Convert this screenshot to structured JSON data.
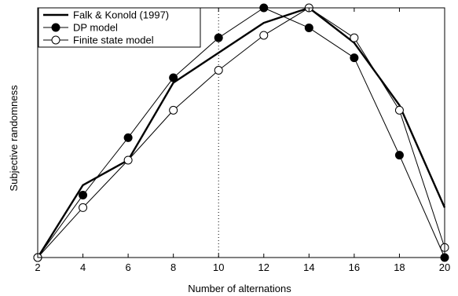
{
  "chart_data": {
    "type": "line",
    "xlabel": "Number of alternations",
    "ylabel": "Subjective randomness",
    "x": [
      2,
      4,
      6,
      8,
      10,
      12,
      14,
      16,
      18,
      20
    ],
    "xlim": [
      2,
      20
    ],
    "ylim": [
      0,
      1
    ],
    "y_tick_labels_shown": false,
    "grid": false,
    "vertical_reference_line": {
      "x": 10,
      "style": "dotted"
    },
    "legend_position": "top-left",
    "series": [
      {
        "name": "Falk & Konold (1997)",
        "style": "thick-line",
        "color": "#000000",
        "values": [
          0.0,
          0.29,
          0.39,
          0.7,
          0.82,
          0.94,
          1.0,
          0.86,
          0.61,
          0.2
        ]
      },
      {
        "name": "DP model",
        "style": "line-filled-circle",
        "color": "#000000",
        "values": [
          0.0,
          0.25,
          0.48,
          0.72,
          0.88,
          1.0,
          0.92,
          0.8,
          0.41,
          0.0
        ]
      },
      {
        "name": "Finite state model",
        "style": "line-open-circle",
        "color": "#000000",
        "values": [
          0.0,
          0.2,
          0.39,
          0.59,
          0.75,
          0.89,
          1.0,
          0.88,
          0.59,
          0.04
        ]
      }
    ]
  }
}
